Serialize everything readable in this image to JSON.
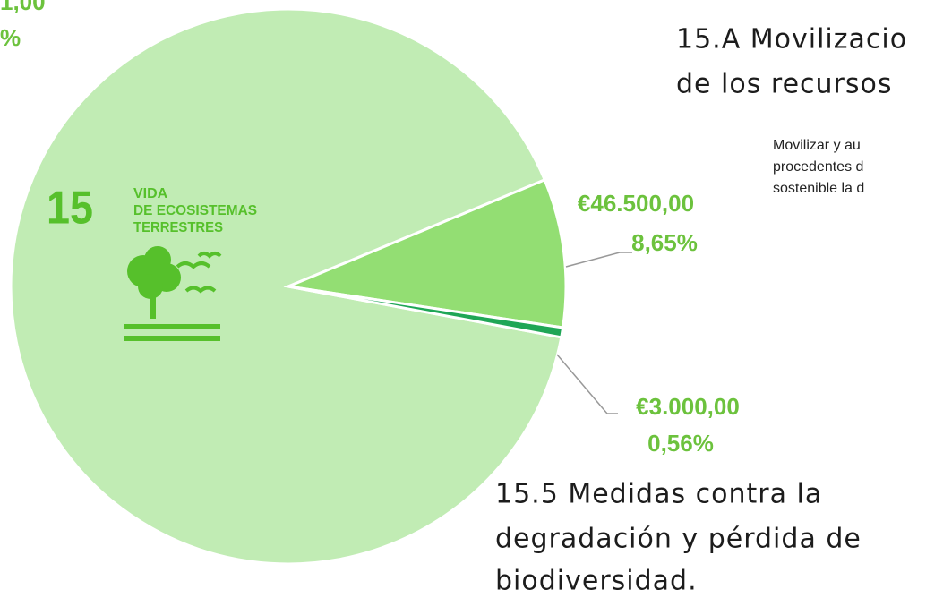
{
  "chart_data": {
    "type": "pie",
    "categories": [
      null,
      null,
      null
    ],
    "values": [
      90.79,
      8.65,
      0.56
    ],
    "value_labels": [
      null,
      "8,65%",
      "0,56%"
    ],
    "amount_labels": [
      null,
      "€46.500,00",
      "€3.000,00"
    ],
    "colors": [
      "#c1ecb4",
      "#93de73",
      "#1fa656"
    ],
    "cropped_label_fragments": [
      "1,00",
      "%"
    ],
    "icon": {
      "number": "15",
      "lines": [
        "VIDA",
        "DE ECOSISTEMAS",
        "TERRESTRES"
      ]
    },
    "annotations": {
      "target_a_title": [
        "15.A Movilizacio",
        "de los recursos"
      ],
      "target_a_text": [
        "Movilizar y au",
        "procedentes d",
        "sostenible la d"
      ],
      "target_5_title": [
        "15.5 Medidas contra la",
        "degradación y pérdida de",
        "biodiversidad."
      ]
    }
  }
}
